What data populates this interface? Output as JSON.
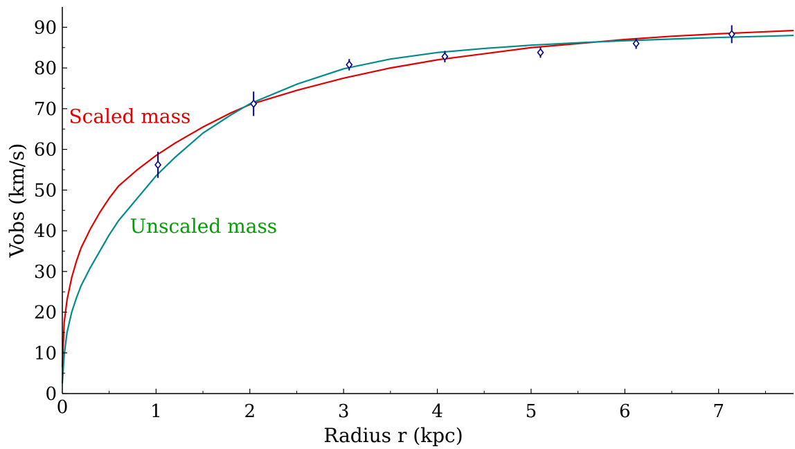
{
  "chart_data": {
    "type": "line",
    "title": "",
    "xlabel": "Radius  r  (kpc)",
    "ylabel": "Vobs  (km/s)",
    "xlim": [
      0,
      7.8
    ],
    "ylim": [
      0,
      95
    ],
    "x_ticks": [
      {
        "value": 0,
        "label": "0"
      },
      {
        "value": 1,
        "label": "1"
      },
      {
        "value": 2,
        "label": "2"
      },
      {
        "value": 3,
        "label": "3"
      },
      {
        "value": 4,
        "label": "4"
      },
      {
        "value": 5,
        "label": "5"
      },
      {
        "value": 6,
        "label": "6"
      },
      {
        "value": 7,
        "label": "7"
      }
    ],
    "y_ticks": [
      {
        "value": 0,
        "label": "0"
      },
      {
        "value": 10,
        "label": "10"
      },
      {
        "value": 20,
        "label": "20"
      },
      {
        "value": 30,
        "label": "30"
      },
      {
        "value": 40,
        "label": "40"
      },
      {
        "value": 50,
        "label": "50"
      },
      {
        "value": 60,
        "label": "60"
      },
      {
        "value": 70,
        "label": "70"
      },
      {
        "value": 80,
        "label": "80"
      },
      {
        "value": 90,
        "label": "90"
      }
    ],
    "grid": false,
    "series": [
      {
        "name": "Scaled mass",
        "color": "#e00000",
        "x": [
          0.0,
          0.02,
          0.05,
          0.1,
          0.15,
          0.2,
          0.3,
          0.4,
          0.5,
          0.6,
          0.8,
          1.0,
          1.2,
          1.5,
          1.8,
          2.0,
          2.5,
          3.0,
          3.5,
          4.0,
          4.5,
          5.0,
          5.5,
          6.0,
          6.5,
          7.0,
          7.5,
          7.8
        ],
        "y": [
          6.5,
          17.5,
          23.0,
          28.5,
          32.5,
          35.8,
          40.5,
          44.5,
          48.0,
          51.0,
          55.0,
          58.5,
          61.5,
          65.5,
          69.0,
          71.0,
          74.5,
          77.5,
          80.0,
          82.0,
          83.5,
          85.0,
          86.0,
          87.0,
          87.8,
          88.4,
          88.9,
          89.2
        ]
      },
      {
        "name": "Unscaled mass",
        "color": "#008b8b",
        "x": [
          0.0,
          0.02,
          0.05,
          0.1,
          0.15,
          0.2,
          0.3,
          0.4,
          0.5,
          0.6,
          0.8,
          1.0,
          1.2,
          1.5,
          1.8,
          2.0,
          2.5,
          3.0,
          3.5,
          4.0,
          4.5,
          5.0,
          5.5,
          6.0,
          6.5,
          7.0,
          7.5,
          7.8
        ],
        "y": [
          2.5,
          9.5,
          15.0,
          20.0,
          23.5,
          26.5,
          31.0,
          35.0,
          39.0,
          42.5,
          48.0,
          53.5,
          58.0,
          64.0,
          68.5,
          71.2,
          76.0,
          79.8,
          82.2,
          83.8,
          84.8,
          85.6,
          86.2,
          86.7,
          87.1,
          87.5,
          87.8,
          88.0
        ]
      }
    ],
    "observations": {
      "color": "#00008b",
      "points": [
        {
          "x": 1.02,
          "y": 56.2,
          "err": 3.2
        },
        {
          "x": 2.04,
          "y": 71.2,
          "err": 3.0
        },
        {
          "x": 3.06,
          "y": 80.8,
          "err": 1.4
        },
        {
          "x": 4.08,
          "y": 82.8,
          "err": 1.4
        },
        {
          "x": 5.1,
          "y": 83.8,
          "err": 1.3
        },
        {
          "x": 6.12,
          "y": 86.0,
          "err": 1.3
        },
        {
          "x": 7.14,
          "y": 88.3,
          "err": 2.2
        }
      ]
    },
    "annotations": [
      {
        "text": "Scaled mass",
        "color": "#e00000",
        "x": 0.07,
        "y": 66.5
      },
      {
        "text": "Unscaled mass",
        "color": "#00a000",
        "x": 0.72,
        "y": 39.5
      }
    ]
  }
}
